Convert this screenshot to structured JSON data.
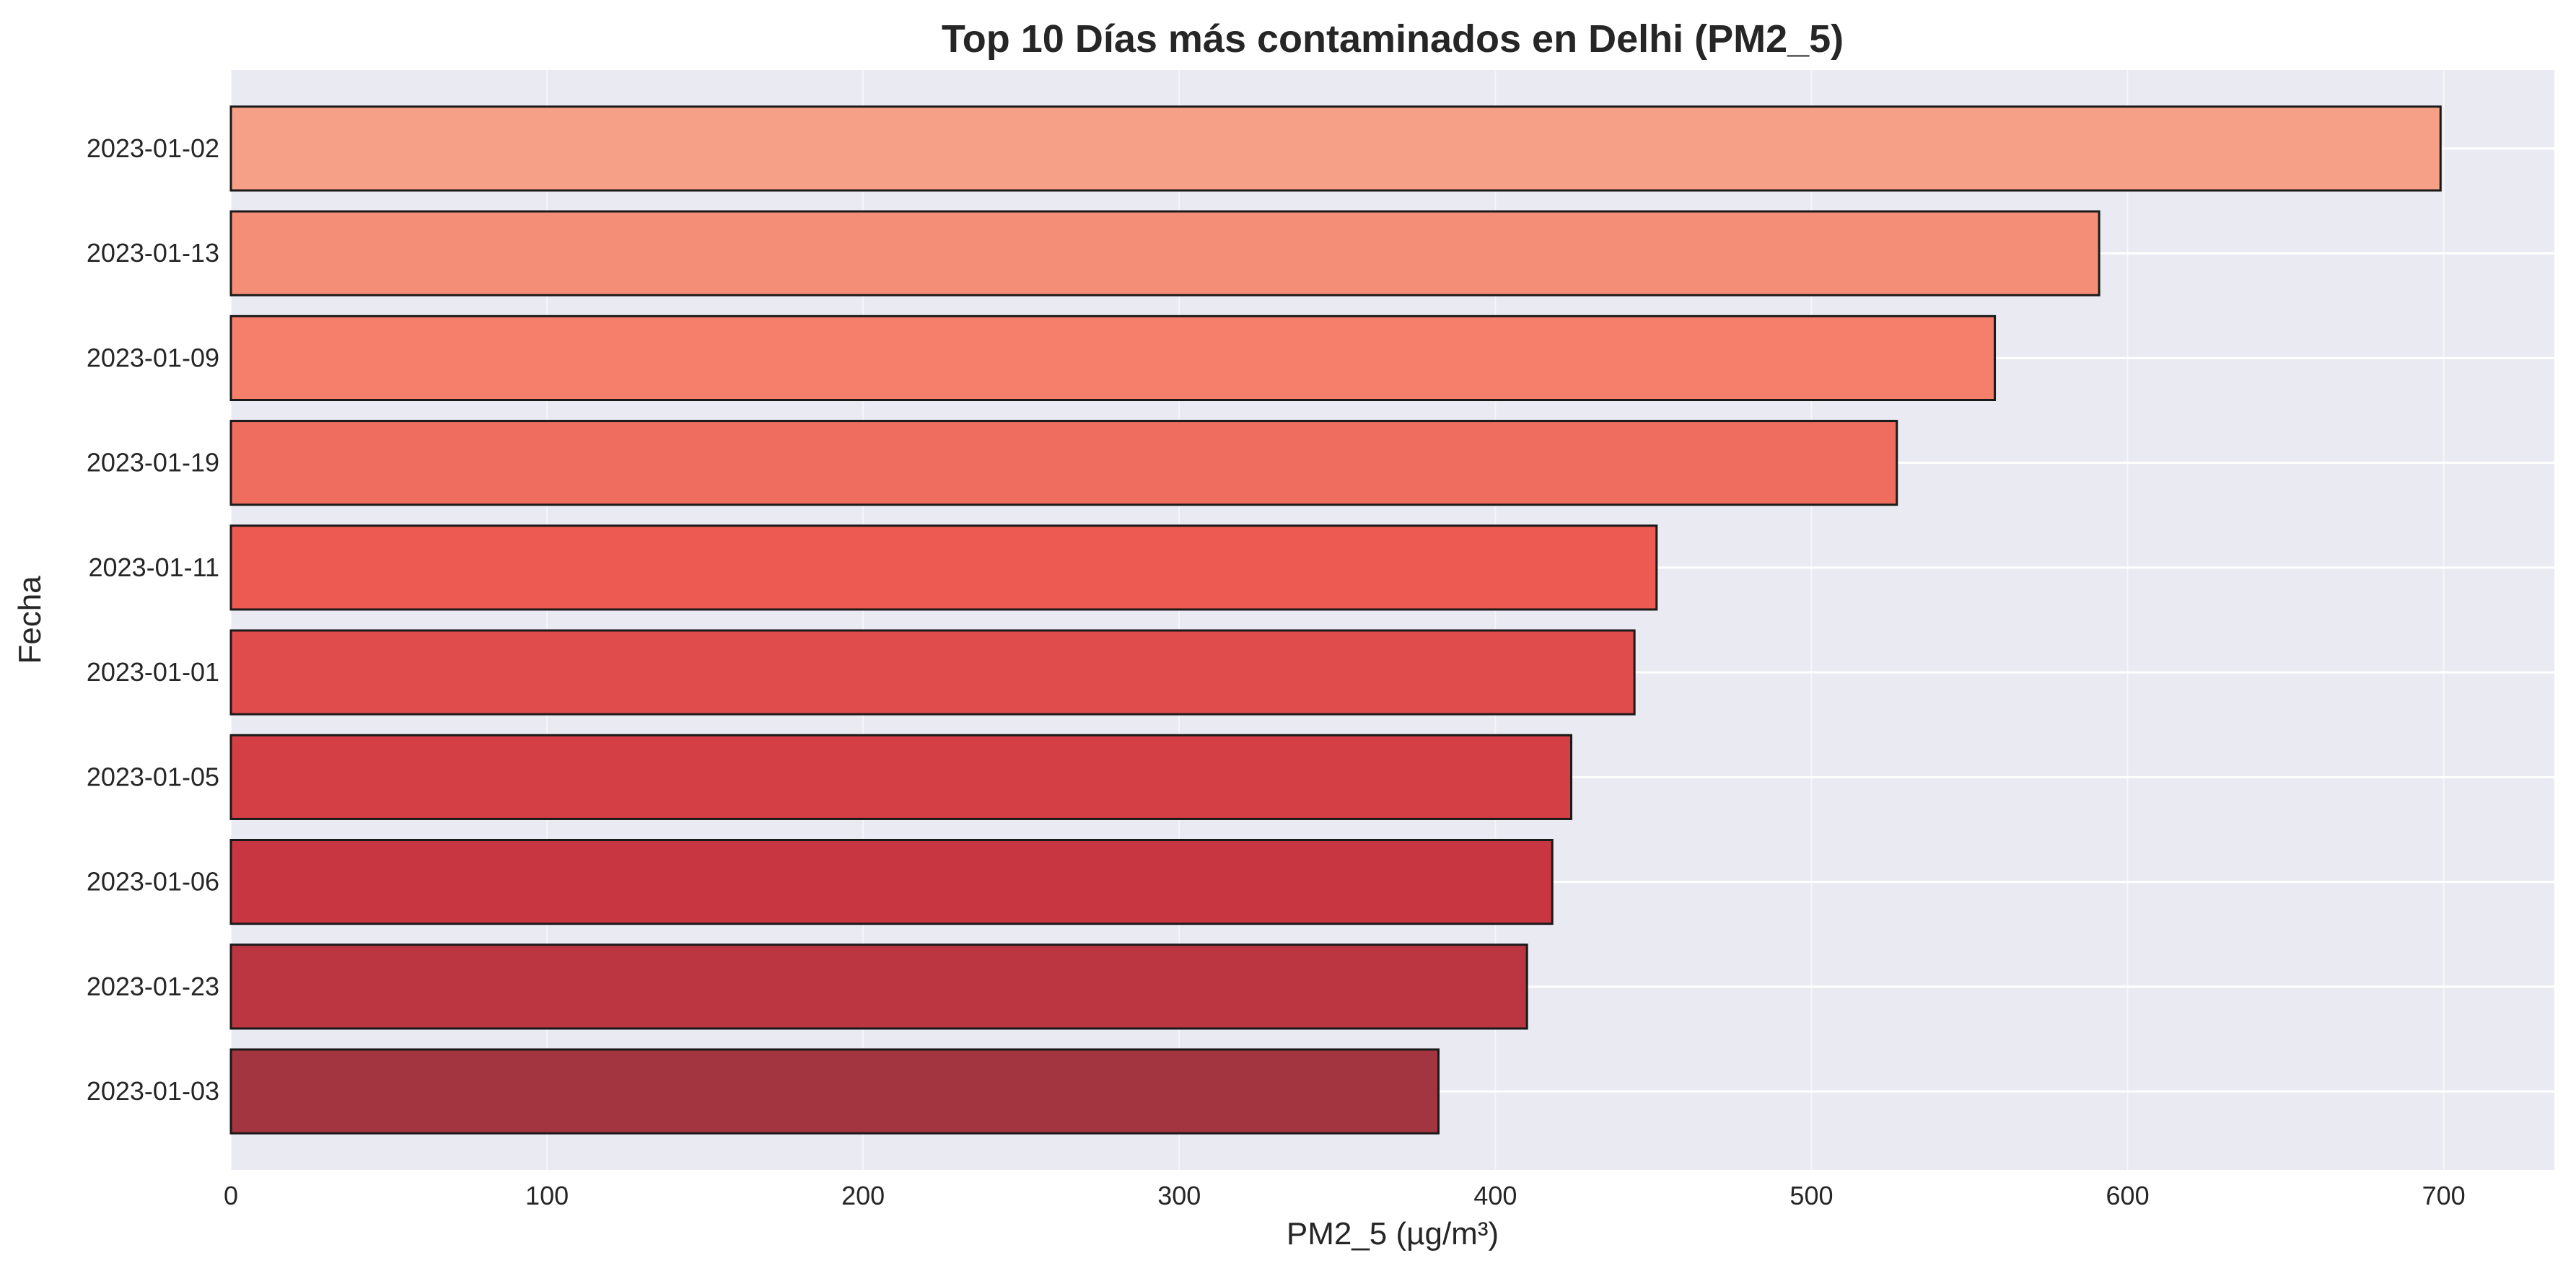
{
  "chart_data": {
    "type": "bar",
    "orientation": "horizontal",
    "title": "Top 10 Días más contaminados en Delhi (PM2_5)",
    "xlabel": "PM2_5 (µg/m³)",
    "ylabel": "Fecha",
    "categories": [
      "2023-01-02",
      "2023-01-13",
      "2023-01-09",
      "2023-01-19",
      "2023-01-11",
      "2023-01-01",
      "2023-01-05",
      "2023-01-06",
      "2023-01-23",
      "2023-01-03"
    ],
    "values": [
      699,
      591,
      558,
      527,
      451,
      444,
      424,
      418,
      410,
      382
    ],
    "bar_colors": [
      "#f6a088",
      "#f58e77",
      "#f67f6b",
      "#ef6d5e",
      "#ec5a52",
      "#e04b4c",
      "#d43e45",
      "#c83641",
      "#bb3640",
      "#a2353f"
    ],
    "xlim": [
      0,
      735
    ],
    "xticks": [
      "0",
      "100",
      "200",
      "300",
      "400",
      "500",
      "600",
      "700"
    ],
    "grid": true,
    "background_color": "#eaeaf2",
    "edge_color": "#1a1a1a"
  }
}
